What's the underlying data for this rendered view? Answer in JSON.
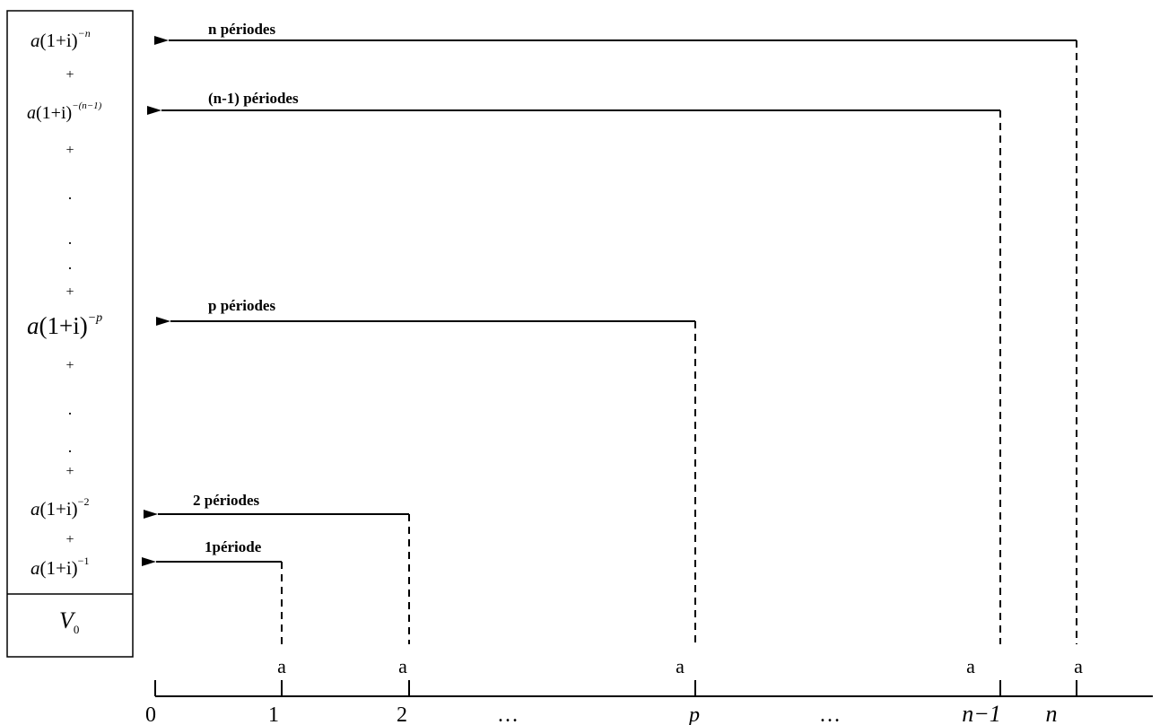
{
  "sum_box": {
    "terms": [
      {
        "coef": "a",
        "base": "(1+i)",
        "exponent": "−n"
      },
      {
        "op": "+"
      },
      {
        "coef": "a",
        "base": "(1+i)",
        "exponent": "−(n−1)"
      },
      {
        "op": "+"
      },
      {
        "op": "."
      },
      {
        "op": "."
      },
      {
        "op": "."
      },
      {
        "op": "+"
      },
      {
        "coef": "a",
        "base": "(1+i)",
        "exponent": "−p"
      },
      {
        "op": "+"
      },
      {
        "op": "."
      },
      {
        "op": "."
      },
      {
        "op": "+"
      },
      {
        "coef": "a",
        "base": "(1+i)",
        "exponent": "−2"
      },
      {
        "op": "+"
      },
      {
        "coef": "a",
        "base": "(1+i)",
        "exponent": "−1"
      }
    ],
    "result": {
      "symbol": "V",
      "subscript": "0"
    }
  },
  "arrows": [
    {
      "label": "n périodes",
      "period": "n"
    },
    {
      "label": "(n-1) périodes",
      "period": "n-1"
    },
    {
      "label": "p périodes",
      "period": "p"
    },
    {
      "label": "2 périodes",
      "period": "2"
    },
    {
      "label": "1période",
      "period": "1"
    }
  ],
  "timeline": {
    "ticks": [
      {
        "label": "0",
        "italic": false
      },
      {
        "label": "1",
        "italic": false
      },
      {
        "label": "2",
        "italic": false
      },
      {
        "label": "…",
        "italic": false
      },
      {
        "label": "p",
        "italic": true
      },
      {
        "label": "…",
        "italic": false
      },
      {
        "label": "n−1",
        "italic": true
      },
      {
        "label": "n",
        "italic": true
      }
    ],
    "payment_label": "a"
  }
}
